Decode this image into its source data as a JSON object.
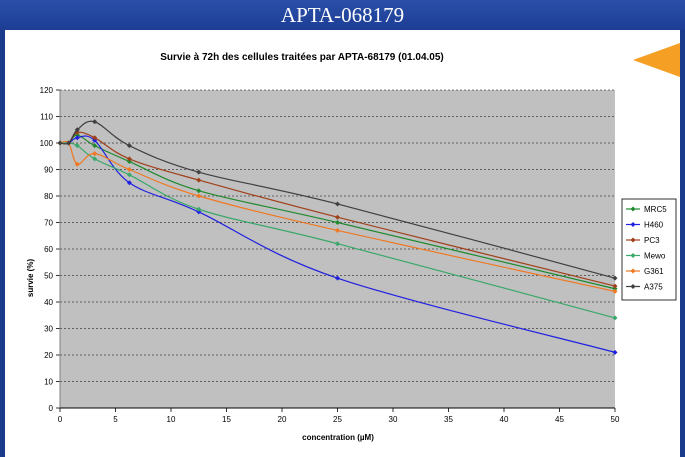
{
  "page": {
    "banner_title": "APTA-068179"
  },
  "colors": {
    "banner": "#1d3d95",
    "plot_bg": "#c0c0c0",
    "arrow": "#f5a025"
  },
  "chart_data": {
    "type": "line",
    "title": "Survie à 72h des cellules traitées par APTA-68179 (01.04.05)",
    "xlabel": "concentration (µM)",
    "ylabel": "survie (%)",
    "xlim": [
      0,
      50
    ],
    "ylim": [
      0,
      120
    ],
    "xticks": [
      0,
      5,
      10,
      15,
      20,
      25,
      30,
      35,
      40,
      45,
      50
    ],
    "yticks": [
      0,
      10,
      20,
      30,
      40,
      50,
      60,
      70,
      80,
      90,
      100,
      110,
      120
    ],
    "grid": "horizontal-dotted",
    "legend_position": "right",
    "series": [
      {
        "name": "MRC5",
        "color": "#1f8a2e",
        "x": [
          0,
          0.78,
          1.56,
          3.125,
          6.25,
          12.5,
          25,
          50
        ],
        "y": [
          100,
          100,
          103,
          99,
          93,
          82,
          70,
          45
        ]
      },
      {
        "name": "H460",
        "color": "#2020e0",
        "x": [
          0,
          0.78,
          1.56,
          3.125,
          6.25,
          12.5,
          25,
          50
        ],
        "y": [
          100,
          100,
          102,
          101,
          85,
          74,
          49,
          21
        ]
      },
      {
        "name": "PC3",
        "color": "#a0401a",
        "x": [
          0,
          0.78,
          1.56,
          3.125,
          6.25,
          12.5,
          25,
          50
        ],
        "y": [
          100,
          100,
          104,
          102,
          94,
          86,
          72,
          46
        ]
      },
      {
        "name": "Mewo",
        "color": "#3aa86a",
        "x": [
          0,
          0.78,
          1.56,
          3.125,
          6.25,
          12.5,
          25,
          50
        ],
        "y": [
          100,
          100,
          99,
          94,
          88,
          75,
          62,
          34
        ]
      },
      {
        "name": "G361",
        "color": "#f07820",
        "x": [
          0,
          0.78,
          1.56,
          3.125,
          6.25,
          12.5,
          25,
          50
        ],
        "y": [
          100,
          100,
          92,
          96,
          90,
          80,
          67,
          44
        ]
      },
      {
        "name": "A375",
        "color": "#404040",
        "x": [
          0,
          0.78,
          1.56,
          3.125,
          6.25,
          12.5,
          25,
          50
        ],
        "y": [
          100,
          100,
          105,
          108,
          99,
          89,
          77,
          49
        ]
      }
    ]
  }
}
